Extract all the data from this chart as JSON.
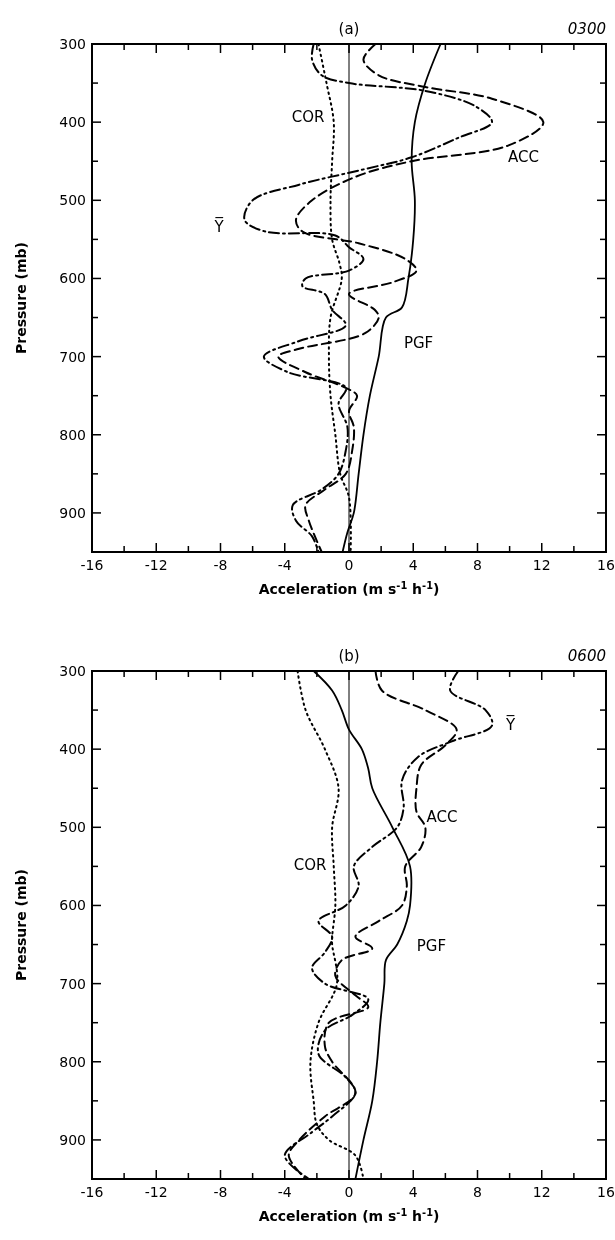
{
  "chart_data": [
    {
      "type": "line",
      "title": "(a)",
      "subtitle": "0300",
      "xlabel": "Acceleration (m s$^{-1}$ h$^{-1}$)",
      "ylabel": "Pressure (mb)",
      "xlim": [
        -16,
        16
      ],
      "ylim": [
        950,
        300
      ],
      "xticks": [
        -16,
        {
          "value": -14,
          "label": null
        },
        -12,
        {
          "value": -10,
          "label": null
        },
        -8,
        {
          "value": -6,
          "label": null
        },
        -4,
        {
          "value": -2,
          "label": null
        },
        0,
        {
          "value": 2,
          "label": null
        },
        4,
        {
          "value": 6,
          "label": null
        },
        8,
        {
          "value": 10,
          "label": null
        },
        12,
        {
          "value": 14,
          "label": null
        },
        16
      ],
      "yticks": [
        300,
        {
          "value": 350,
          "label": null
        },
        400,
        {
          "value": 450,
          "label": null
        },
        500,
        {
          "value": 550,
          "label": null
        },
        600,
        {
          "value": 650,
          "label": null
        },
        700,
        {
          "value": 750,
          "label": null
        },
        800,
        {
          "value": 850,
          "label": null
        },
        900,
        {
          "value": 950,
          "label": null
        }
      ],
      "grid": false,
      "marker": "none",
      "ref_lines": [
        {
          "axis": "x",
          "value": 0,
          "color": "#000000",
          "line_style": "solid"
        }
      ],
      "series": [
        {
          "name": "PGF",
          "color": "#000000",
          "line_style": "solid",
          "x": [
            5.7,
            4.75,
            4.1,
            3.9,
            4.1,
            4.0,
            3.7,
            3.3,
            2.3,
            1.85,
            1.3,
            0.9,
            0.6,
            0.3,
            -0.1,
            -0.4
          ],
          "values": [
            300,
            350,
            400,
            450,
            500,
            550,
            600,
            637,
            650,
            700,
            750,
            800,
            850,
            900,
            925,
            950
          ]
        },
        {
          "name": "COR",
          "color": "#000000",
          "line_style": "dotted",
          "x": [
            -1.9,
            -1.4,
            -0.95,
            -1.05,
            -1.15,
            -1.05,
            -0.6,
            -0.45,
            -1.15,
            -1.25,
            -1.15,
            -0.85,
            -0.55,
            0,
            0.1
          ],
          "values": [
            300,
            350,
            400,
            450,
            500,
            550,
            580,
            600,
            650,
            700,
            750,
            800,
            850,
            880,
            950
          ]
        },
        {
          "name": "ACC",
          "color": "#000000",
          "line_style": "dashed",
          "x": [
            1.65,
            0.9,
            1.85,
            4.75,
            8.9,
            12.1,
            9.9,
            3.9,
            0.4,
            -2.3,
            -3.3,
            -2.9,
            0.6,
            3.5,
            4.2,
            2.7,
            0,
            1.6,
            1.85,
            1.0,
            -3.1,
            -4.4,
            -2.7,
            -0.2,
            0.5,
            0,
            0.3,
            0.2,
            -0.2,
            -1.5,
            -2.7,
            -2.5,
            -1.7
          ],
          "values": [
            300,
            320,
            340,
            355,
            370,
            400,
            430,
            450,
            470,
            500,
            525,
            540,
            555,
            575,
            590,
            605,
            620,
            640,
            650,
            670,
            690,
            700,
            720,
            740,
            750,
            770,
            790,
            820,
            850,
            870,
            890,
            910,
            950
          ]
        },
        {
          "name": "Y̅",
          "color": "#000000",
          "line_style": "dashdot",
          "x": [
            -2.2,
            -2.3,
            -1.7,
            0,
            4.75,
            7.9,
            8.9,
            6.8,
            3.9,
            1.0,
            -3.1,
            -6.0,
            -6.5,
            -5.2,
            -0.85,
            0,
            0.9,
            0,
            -2.7,
            -2.9,
            -1.5,
            -1.05,
            -0.2,
            -3.1,
            -5.3,
            -3.8,
            -0.2,
            -0.65,
            -0.1,
            -0.2,
            -0.65,
            -1.7,
            -3.5,
            -3.3,
            -2.3,
            -1.9
          ],
          "values": [
            300,
            320,
            340,
            350,
            360,
            380,
            400,
            420,
            445,
            460,
            480,
            500,
            525,
            540,
            545,
            560,
            575,
            590,
            600,
            610,
            620,
            640,
            660,
            680,
            700,
            720,
            740,
            760,
            790,
            820,
            850,
            870,
            890,
            910,
            930,
            950
          ]
        }
      ]
    },
    {
      "type": "line",
      "title": "(b)",
      "subtitle": "0600",
      "xlabel": "Acceleration (m s$^{-1}$ h$^{-1}$)",
      "ylabel": "Pressure (mb)",
      "xlim": [
        -16,
        16
      ],
      "ylim": [
        950,
        300
      ],
      "xticks": [
        -16,
        {
          "value": -14,
          "label": null
        },
        -12,
        {
          "value": -10,
          "label": null
        },
        -8,
        {
          "value": -6,
          "label": null
        },
        -4,
        {
          "value": -2,
          "label": null
        },
        0,
        {
          "value": 2,
          "label": null
        },
        4,
        {
          "value": 6,
          "label": null
        },
        8,
        {
          "value": 10,
          "label": null
        },
        12,
        {
          "value": 14,
          "label": null
        },
        16
      ],
      "yticks": [
        300,
        {
          "value": 350,
          "label": null
        },
        400,
        {
          "value": 450,
          "label": null
        },
        500,
        {
          "value": 550,
          "label": null
        },
        600,
        {
          "value": 650,
          "label": null
        },
        700,
        {
          "value": 750,
          "label": null
        },
        800,
        {
          "value": 850,
          "label": null
        },
        900,
        {
          "value": 950,
          "label": null
        }
      ],
      "grid": false,
      "marker": "none",
      "ref_lines": [
        {
          "axis": "x",
          "value": 0,
          "color": "#000000",
          "line_style": "solid"
        }
      ],
      "series": [
        {
          "name": "PGF",
          "color": "#000000",
          "line_style": "solid",
          "x": [
            -2.2,
            -1.05,
            -0.45,
            0,
            0.8,
            1.2,
            1.45,
            2.7,
            3.8,
            3.8,
            3.6,
            3.0,
            2.3,
            2.2,
            1.95,
            1.75,
            1.45,
            0.9,
            0.4
          ],
          "values": [
            300,
            325,
            350,
            375,
            400,
            425,
            450,
            500,
            550,
            600,
            620,
            650,
            670,
            700,
            750,
            800,
            850,
            900,
            950
          ]
        },
        {
          "name": "COR",
          "color": "#000000",
          "line_style": "dotted",
          "x": [
            -3.2,
            -2.7,
            -1.5,
            -0.65,
            -1.05,
            -0.95,
            -0.85,
            -1.05,
            -1.05,
            -0.75,
            -1.9,
            -2.4,
            -2.2,
            -2.0,
            -1.25,
            0.4,
            0.9
          ],
          "values": [
            300,
            350,
            400,
            450,
            500,
            550,
            600,
            640,
            650,
            700,
            750,
            800,
            850,
            880,
            900,
            920,
            950
          ]
        },
        {
          "name": "ACC",
          "color": "#000000",
          "line_style": "dashed",
          "x": [
            1.65,
            2.05,
            4.75,
            6.7,
            6.0,
            4.5,
            4.2,
            4.2,
            4.75,
            4.5,
            3.5,
            3.6,
            3.3,
            1.85,
            0.4,
            1.45,
            -0.45,
            -0.85,
            0.4,
            1.2,
            -1.25,
            -1.5,
            -1.05,
            0.4,
            -1.5,
            -3.1,
            -3.75,
            -2.7
          ],
          "values": [
            300,
            325,
            350,
            375,
            395,
            420,
            450,
            480,
            500,
            525,
            550,
            575,
            600,
            620,
            640,
            655,
            670,
            690,
            715,
            730,
            750,
            780,
            800,
            840,
            870,
            900,
            920,
            950
          ]
        },
        {
          "name": "Y̅",
          "color": "#000000",
          "line_style": "dashdot",
          "x": [
            6.8,
            6.3,
            8.5,
            8.9,
            6.4,
            4.3,
            3.3,
            3.4,
            3.0,
            1.45,
            0.3,
            0.6,
            -0.2,
            -1.9,
            -1.05,
            -1.5,
            -2.3,
            -1.5,
            1.2,
            0.2,
            -1.5,
            -1.9,
            -0.2,
            0.4,
            -1.05,
            -2.3,
            -4.0,
            -2.5
          ],
          "values": [
            300,
            325,
            350,
            370,
            390,
            410,
            440,
            475,
            500,
            525,
            550,
            575,
            600,
            620,
            640,
            660,
            680,
            700,
            720,
            740,
            760,
            790,
            820,
            840,
            870,
            890,
            920,
            950
          ]
        }
      ]
    }
  ]
}
